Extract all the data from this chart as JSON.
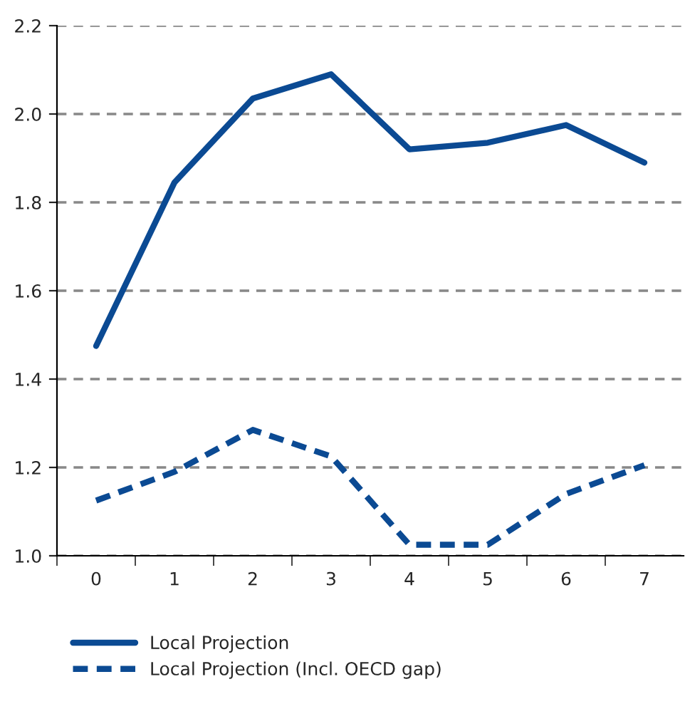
{
  "chart_data": {
    "type": "line",
    "categories": [
      "0",
      "1",
      "2",
      "3",
      "4",
      "5",
      "6",
      "7"
    ],
    "series": [
      {
        "name": "Local Projection",
        "color": "#0b4a93",
        "line_style": "solid",
        "values": [
          1.475,
          1.845,
          2.035,
          2.09,
          1.92,
          1.935,
          1.975,
          1.89
        ]
      },
      {
        "name": "Local Projection (Incl. OECD gap)",
        "color": "#0b4a93",
        "line_style": "dashed",
        "values": [
          1.125,
          1.19,
          1.285,
          1.225,
          1.025,
          1.025,
          1.14,
          1.205
        ]
      }
    ],
    "ylim": [
      1.0,
      2.2
    ],
    "yticks": [
      {
        "value": 1.0,
        "label": "1.0"
      },
      {
        "value": 1.2,
        "label": "1.2"
      },
      {
        "value": 1.4,
        "label": "1.4"
      },
      {
        "value": 1.6,
        "label": "1.6"
      },
      {
        "value": 1.8,
        "label": "1.8"
      },
      {
        "value": 2.0,
        "label": "2.0"
      },
      {
        "value": 2.2,
        "label": "2.2"
      }
    ],
    "grid": "y",
    "legend": "bottom",
    "marker": "none"
  }
}
